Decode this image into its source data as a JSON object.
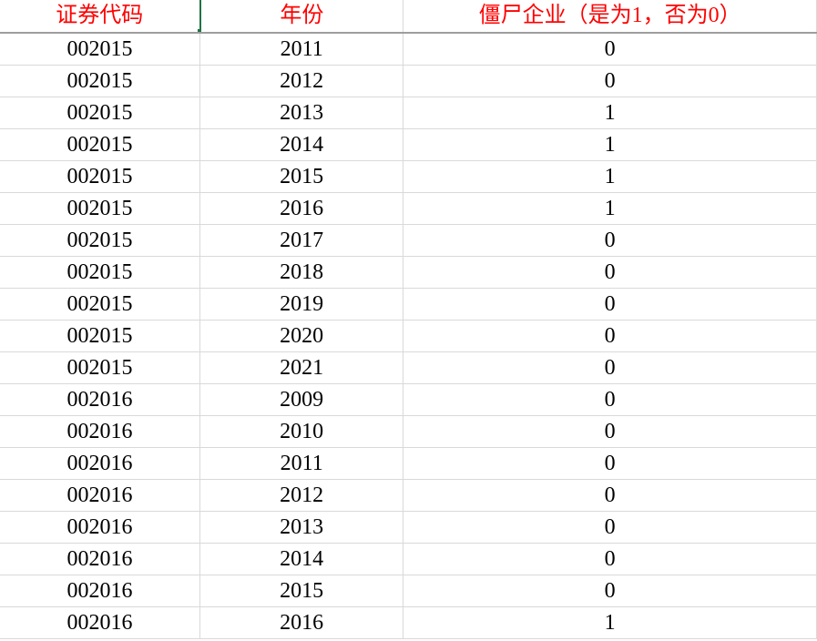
{
  "headers": [
    "证券代码",
    "年份",
    "僵尸企业（是为1，否为0）"
  ],
  "rows": [
    [
      "002015",
      "2011",
      "0"
    ],
    [
      "002015",
      "2012",
      "0"
    ],
    [
      "002015",
      "2013",
      "1"
    ],
    [
      "002015",
      "2014",
      "1"
    ],
    [
      "002015",
      "2015",
      "1"
    ],
    [
      "002015",
      "2016",
      "1"
    ],
    [
      "002015",
      "2017",
      "0"
    ],
    [
      "002015",
      "2018",
      "0"
    ],
    [
      "002015",
      "2019",
      "0"
    ],
    [
      "002015",
      "2020",
      "0"
    ],
    [
      "002015",
      "2021",
      "0"
    ],
    [
      "002016",
      "2009",
      "0"
    ],
    [
      "002016",
      "2010",
      "0"
    ],
    [
      "002016",
      "2011",
      "0"
    ],
    [
      "002016",
      "2012",
      "0"
    ],
    [
      "002016",
      "2013",
      "0"
    ],
    [
      "002016",
      "2014",
      "0"
    ],
    [
      "002016",
      "2015",
      "0"
    ],
    [
      "002016",
      "2016",
      "1"
    ]
  ],
  "colors": {
    "header_text": "#ff0000",
    "selection": "#217346"
  },
  "selected_cell": "A1"
}
